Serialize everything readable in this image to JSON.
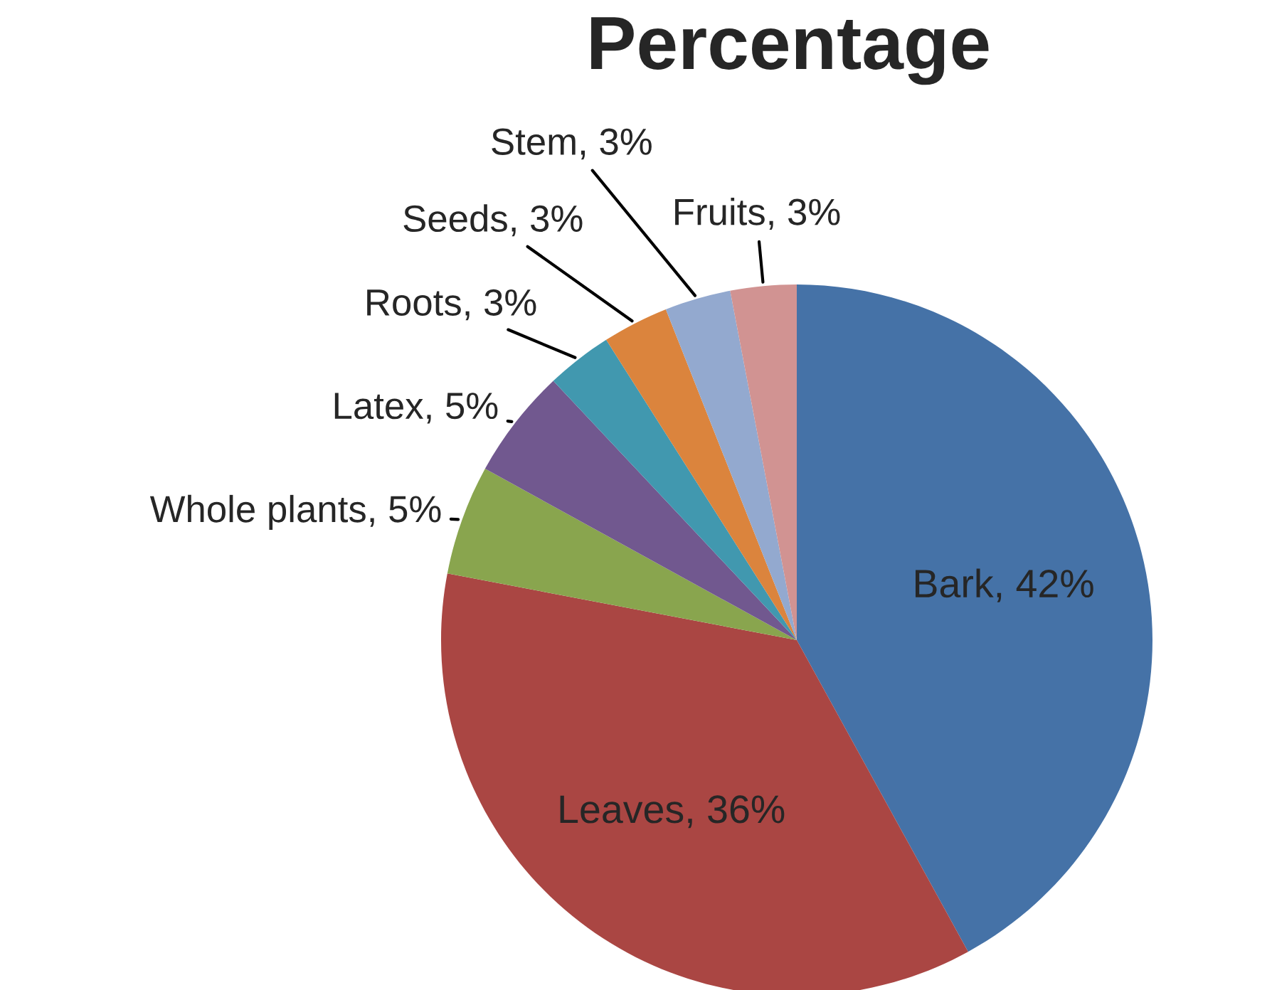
{
  "chart_data": {
    "type": "pie",
    "title": "Percentage",
    "categories": [
      "Bark",
      "Leaves",
      "Whole plants",
      "Latex",
      "Roots",
      "Seeds",
      "Stem",
      "Fruits"
    ],
    "values": [
      42,
      36,
      5,
      5,
      3,
      3,
      3,
      3
    ],
    "value_labels": [
      "42%",
      "36%",
      "5%",
      "5%",
      "3%",
      "3%",
      "3%",
      "3%"
    ],
    "colors": [
      "#4572a7",
      "#aa4643",
      "#89a54e",
      "#71588f",
      "#4198af",
      "#db843d",
      "#93a9cf",
      "#d19392"
    ]
  }
}
